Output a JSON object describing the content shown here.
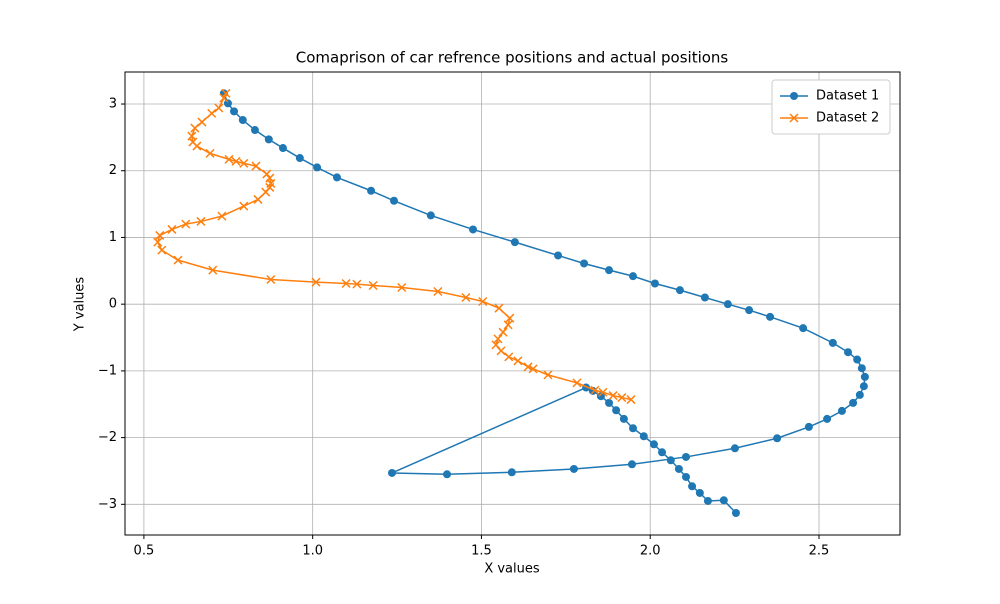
{
  "chart_data": {
    "type": "line",
    "title": "Comaprison of car refrence positions and actual positions",
    "x_label": "X values",
    "y_label": "Y values",
    "xlim": [
      0.444,
      2.74
    ],
    "ylim": [
      -3.46,
      3.48
    ],
    "xticks": [
      0.5,
      {
        "value": 1.0,
        "label": "1.0"
      },
      1.5,
      {
        "value": 2.0,
        "label": "2.0"
      },
      2.5
    ],
    "yticks": [
      {
        "value": -3,
        "label": "−3"
      },
      {
        "value": -2,
        "label": "−2"
      },
      {
        "value": -1,
        "label": "−1"
      },
      0,
      1,
      2,
      3
    ],
    "grid": true,
    "legend": "upper right",
    "series": [
      {
        "name": "Dataset 1",
        "color": "#1f77b4",
        "marker": "o",
        "x": [
          0.737,
          0.749,
          0.767,
          0.793,
          0.829,
          0.87,
          0.912,
          0.962,
          1.013,
          1.072,
          1.173,
          1.241,
          1.35,
          1.475,
          1.599,
          1.727,
          1.804,
          1.878,
          1.949,
          2.014,
          2.088,
          2.162,
          2.23,
          2.293,
          2.355,
          2.453,
          2.541,
          2.586,
          2.613,
          2.627,
          2.636,
          2.633,
          2.621,
          2.601,
          2.568,
          2.524,
          2.47,
          2.376,
          2.251,
          2.106,
          1.946,
          1.774,
          1.59,
          1.398,
          1.235,
          1.81,
          1.83,
          1.854,
          1.878,
          1.899,
          1.922,
          1.949,
          1.981,
          2.011,
          2.035,
          2.061,
          2.085,
          2.106,
          2.124,
          2.147,
          2.171,
          2.218,
          2.254
        ],
        "values": [
          3.16,
          3.01,
          2.89,
          2.76,
          2.61,
          2.47,
          2.34,
          2.19,
          2.05,
          1.9,
          1.7,
          1.55,
          1.33,
          1.12,
          0.93,
          0.73,
          0.61,
          0.51,
          0.42,
          0.31,
          0.21,
          0.1,
          0.0,
          -0.09,
          -0.19,
          -0.36,
          -0.58,
          -0.72,
          -0.83,
          -0.96,
          -1.09,
          -1.23,
          -1.36,
          -1.48,
          -1.6,
          -1.72,
          -1.84,
          -2.01,
          -2.16,
          -2.29,
          -2.4,
          -2.47,
          -2.52,
          -2.55,
          -2.53,
          -1.25,
          -1.3,
          -1.38,
          -1.48,
          -1.59,
          -1.72,
          -1.86,
          -1.98,
          -2.1,
          -2.22,
          -2.34,
          -2.47,
          -2.59,
          -2.73,
          -2.83,
          -2.95,
          -2.94,
          -3.13
        ]
      },
      {
        "name": "Dataset 2",
        "color": "#ff7f0e",
        "marker": "x",
        "x": [
          0.743,
          0.737,
          0.722,
          0.701,
          0.672,
          0.651,
          0.642,
          0.645,
          0.657,
          0.696,
          0.752,
          0.773,
          0.796,
          0.832,
          0.864,
          0.873,
          0.876,
          0.873,
          0.861,
          0.838,
          0.796,
          0.731,
          0.669,
          0.624,
          0.583,
          0.547,
          0.541,
          0.553,
          0.601,
          0.704,
          0.876,
          1.01,
          1.099,
          1.131,
          1.179,
          1.264,
          1.371,
          1.454,
          1.504,
          1.552,
          1.584,
          1.579,
          1.564,
          1.549,
          1.543,
          1.558,
          1.581,
          1.608,
          1.638,
          1.653,
          1.697,
          1.783,
          1.836,
          1.86,
          1.89,
          1.916,
          1.943
        ],
        "values": [
          3.16,
          3.09,
          2.94,
          2.86,
          2.73,
          2.64,
          2.52,
          2.43,
          2.37,
          2.26,
          2.17,
          2.14,
          2.11,
          2.07,
          1.95,
          1.89,
          1.81,
          1.75,
          1.68,
          1.57,
          1.47,
          1.32,
          1.24,
          1.2,
          1.12,
          1.03,
          0.93,
          0.81,
          0.66,
          0.51,
          0.37,
          0.33,
          0.31,
          0.3,
          0.28,
          0.25,
          0.19,
          0.1,
          0.04,
          -0.06,
          -0.21,
          -0.31,
          -0.42,
          -0.52,
          -0.61,
          -0.7,
          -0.79,
          -0.85,
          -0.94,
          -0.97,
          -1.06,
          -1.18,
          -1.29,
          -1.32,
          -1.37,
          -1.4,
          -1.43
        ]
      }
    ]
  }
}
